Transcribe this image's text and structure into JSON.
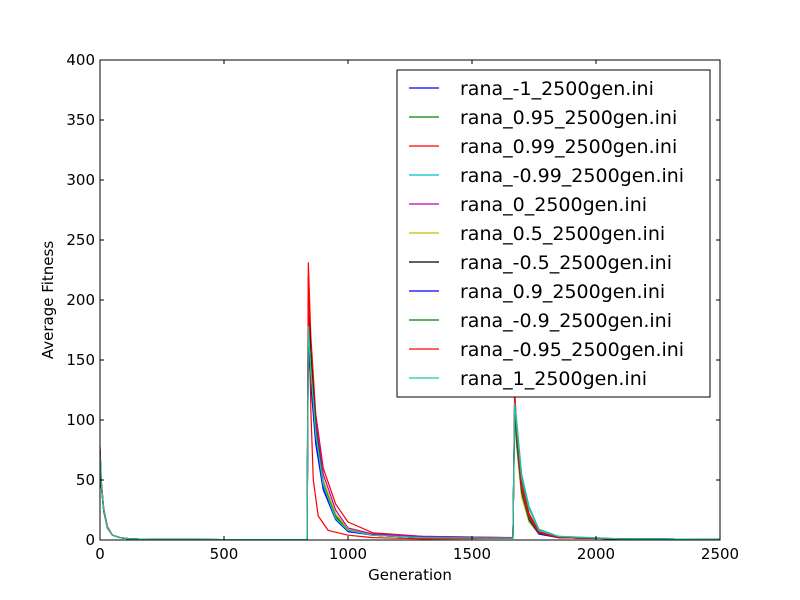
{
  "chart_data": {
    "type": "line",
    "title": "",
    "xlabel": "Generation",
    "ylabel": "Average Fitness",
    "xlim": [
      0,
      2500
    ],
    "ylim": [
      0,
      400
    ],
    "xticks": [
      0,
      500,
      1000,
      1500,
      2000,
      2500
    ],
    "yticks": [
      0,
      50,
      100,
      150,
      200,
      250,
      300,
      350,
      400
    ],
    "grid": false,
    "legend_position": "top-right",
    "series": [
      {
        "name": "rana_-1_2500gen.ini",
        "color": "#0000ff",
        "x": [
          0,
          5,
          15,
          30,
          50,
          80,
          120,
          200,
          500,
          835,
          840,
          850,
          870,
          900,
          950,
          1000,
          1100,
          1300,
          1665,
          1672,
          1680,
          1700,
          1730,
          1770,
          1850,
          2100,
          2500
        ],
        "y": [
          75,
          48,
          25,
          10,
          4,
          2,
          1,
          0.5,
          0.3,
          0.3,
          170,
          140,
          85,
          45,
          18,
          8,
          4,
          2,
          1.5,
          120,
          90,
          45,
          20,
          6,
          2,
          1,
          0.5
        ]
      },
      {
        "name": "rana_0.95_2500gen.ini",
        "color": "#008000",
        "x": [
          0,
          5,
          15,
          30,
          50,
          80,
          120,
          200,
          500,
          835,
          840,
          850,
          870,
          900,
          950,
          1000,
          1100,
          1300,
          1665,
          1672,
          1680,
          1700,
          1730,
          1770,
          1850,
          2100,
          2500
        ],
        "y": [
          72,
          46,
          24,
          10,
          4,
          2,
          1,
          0.5,
          0.3,
          0.3,
          190,
          150,
          95,
          50,
          20,
          9,
          4,
          2,
          1.5,
          110,
          85,
          40,
          18,
          6,
          2,
          1,
          0.5
        ]
      },
      {
        "name": "rana_0.99_2500gen.ini",
        "color": "#ff0000",
        "x": [
          0,
          5,
          15,
          30,
          50,
          80,
          120,
          200,
          500,
          835,
          840,
          850,
          870,
          900,
          950,
          1000,
          1100,
          1300,
          1665,
          1672,
          1680,
          1700,
          1730,
          1770,
          1850,
          2100,
          2500
        ],
        "y": [
          78,
          50,
          26,
          11,
          4,
          2,
          1,
          0.5,
          0.3,
          0.3,
          231,
          170,
          105,
          60,
          30,
          15,
          6,
          3,
          2,
          125,
          95,
          50,
          22,
          7,
          2,
          1,
          0.5
        ]
      },
      {
        "name": "rana_-0.99_2500gen.ini",
        "color": "#00bfbf",
        "x": [
          0,
          5,
          15,
          30,
          50,
          80,
          120,
          200,
          500,
          835,
          840,
          850,
          870,
          900,
          950,
          1000,
          1100,
          1300,
          1665,
          1672,
          1680,
          1700,
          1730,
          1770,
          1850,
          2100,
          2500
        ],
        "y": [
          74,
          47,
          25,
          10,
          4,
          2,
          1,
          0.5,
          0.3,
          0.3,
          180,
          145,
          90,
          48,
          19,
          8,
          4,
          2,
          1.5,
          115,
          100,
          55,
          28,
          9,
          3,
          1,
          0.5
        ]
      },
      {
        "name": "rana_0_2500gen.ini",
        "color": "#bf00bf",
        "x": [
          0,
          5,
          15,
          30,
          50,
          80,
          120,
          200,
          500,
          835,
          840,
          850,
          870,
          900,
          950,
          1000,
          1100,
          1300,
          1665,
          1672,
          1680,
          1700,
          1730,
          1770,
          1850,
          2100,
          2500
        ],
        "y": [
          70,
          45,
          24,
          10,
          4,
          2,
          1,
          0.5,
          0.3,
          0.3,
          175,
          150,
          100,
          55,
          25,
          10,
          5,
          3,
          2,
          105,
          80,
          38,
          16,
          5,
          2,
          1,
          0.5
        ]
      },
      {
        "name": "rana_0.5_2500gen.ini",
        "color": "#bfbf00",
        "x": [
          0,
          5,
          15,
          30,
          50,
          80,
          120,
          200,
          500,
          835,
          840,
          850,
          870,
          900,
          950,
          1000,
          1100,
          1300,
          1665,
          1672,
          1680,
          1700,
          1730,
          1770,
          1850,
          2100,
          2500
        ],
        "y": [
          71,
          45,
          24,
          10,
          4,
          2,
          1,
          0.5,
          0.3,
          0.3,
          165,
          135,
          88,
          50,
          22,
          9,
          4,
          2,
          1.5,
          100,
          78,
          36,
          15,
          5,
          2,
          1,
          0.5
        ]
      },
      {
        "name": "rana_-0.5_2500gen.ini",
        "color": "#000000",
        "x": [
          0,
          5,
          15,
          30,
          50,
          80,
          120,
          200,
          500,
          835,
          840,
          850,
          870,
          900,
          950,
          1000,
          1100,
          1300,
          1665,
          1672,
          1680,
          1700,
          1730,
          1770,
          1850,
          2100,
          2500
        ],
        "y": [
          73,
          46,
          25,
          10,
          4,
          2,
          1,
          0.5,
          0.3,
          0.3,
          200,
          155,
          92,
          46,
          18,
          8,
          4,
          2,
          1.5,
          112,
          86,
          42,
          19,
          6,
          2,
          1,
          0.5
        ]
      },
      {
        "name": "rana_0.9_2500gen.ini",
        "color": "#0000ff",
        "x": [
          0,
          5,
          15,
          30,
          50,
          80,
          120,
          200,
          500,
          835,
          840,
          850,
          870,
          900,
          950,
          1000,
          1100,
          1300,
          1665,
          1672,
          1680,
          1700,
          1730,
          1770,
          1850,
          2100,
          2500
        ],
        "y": [
          72,
          46,
          24,
          10,
          4,
          2,
          1,
          0.5,
          0.3,
          0.3,
          160,
          130,
          80,
          42,
          17,
          7,
          4,
          2,
          1.5,
          108,
          82,
          40,
          17,
          5,
          2,
          1,
          0.5
        ]
      },
      {
        "name": "rana_-0.9_2500gen.ini",
        "color": "#008000",
        "x": [
          0,
          5,
          15,
          30,
          50,
          80,
          120,
          200,
          500,
          835,
          840,
          850,
          870,
          900,
          950,
          1000,
          1100,
          1300,
          1665,
          1672,
          1680,
          1700,
          1730,
          1770,
          1850,
          2100,
          2500
        ],
        "y": [
          73,
          47,
          25,
          10,
          4,
          2,
          1,
          0.5,
          0.3,
          0.3,
          185,
          148,
          93,
          47,
          19,
          8,
          4,
          2,
          1.5,
          110,
          84,
          41,
          18,
          6,
          2,
          1,
          0.5
        ]
      },
      {
        "name": "rana_-0.95_2500gen.ini",
        "color": "#ff0000",
        "x": [
          0,
          5,
          15,
          30,
          50,
          80,
          120,
          200,
          500,
          835,
          840,
          850,
          860,
          880,
          920,
          1000,
          1100,
          1300,
          1665,
          1672,
          1680,
          1700,
          1730,
          1770,
          1850,
          2100,
          2500
        ],
        "y": [
          76,
          49,
          26,
          11,
          4,
          2,
          1,
          0.5,
          0.3,
          0.3,
          220,
          110,
          50,
          20,
          8,
          4,
          2,
          1,
          1.5,
          118,
          90,
          44,
          20,
          6,
          2,
          1,
          0.5
        ]
      },
      {
        "name": "rana_1_2500gen.ini",
        "color": "#1ac8a8",
        "x": [
          0,
          5,
          15,
          30,
          50,
          80,
          120,
          200,
          500,
          835,
          840,
          850,
          870,
          900,
          950,
          1000,
          1100,
          1300,
          1665,
          1672,
          1680,
          1700,
          1730,
          1770,
          1850,
          2100,
          2500
        ],
        "y": [
          74,
          47,
          25,
          10,
          4,
          2,
          1,
          0.5,
          0.3,
          0.3,
          178,
          142,
          88,
          46,
          18,
          8,
          4,
          2,
          1.5,
          114,
          96,
          52,
          26,
          8,
          3,
          1,
          0.5
        ]
      }
    ]
  }
}
